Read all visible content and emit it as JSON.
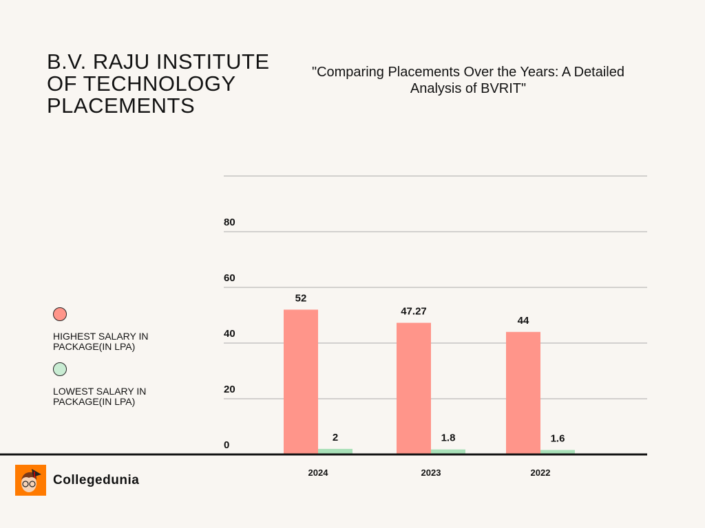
{
  "header": {
    "title": "B.V. RAJU INSTITUTE OF TECHNOLOGY PLACEMENTS",
    "subtitle": "\"Comparing Placements Over the Years: A Detailed Analysis of BVRIT\""
  },
  "brand": {
    "name": "Collegedunia",
    "logo_color": "#ff7a00"
  },
  "chart_data": {
    "type": "bar",
    "categories": [
      "2024",
      "2023",
      "2022"
    ],
    "series": [
      {
        "name": "HIGHEST SALARY IN PACKAGE(IN LPA)",
        "values": [
          52,
          47.27,
          44
        ],
        "color": "#ff958a",
        "labels": [
          "52",
          "47.27",
          "44"
        ]
      },
      {
        "name": "LOWEST SALARY IN PACKAGE(IN LPA)",
        "values": [
          2,
          1.8,
          1.6
        ],
        "color": "#a8e0b8",
        "labels": [
          "2",
          "1.8",
          "1.6"
        ]
      }
    ],
    "ylim": [
      0,
      100
    ],
    "yticks": [
      "0",
      "20",
      "40",
      "60",
      "80"
    ],
    "grid": true,
    "legend": "left"
  }
}
